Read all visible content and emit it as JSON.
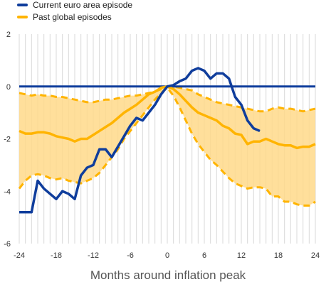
{
  "chart_data": {
    "type": "line",
    "title": "",
    "xlabel": "Months around inflation peak",
    "ylabel": "",
    "xlim": [
      -24,
      24
    ],
    "ylim": [
      -6,
      2
    ],
    "x_ticks": [
      -24,
      -18,
      -12,
      -6,
      0,
      6,
      12,
      18,
      24
    ],
    "y_ticks": [
      -6,
      -4,
      -2,
      0,
      2
    ],
    "x_tick_labels": [
      "-24",
      "-18",
      "-12",
      "-6",
      "0",
      "6",
      "12",
      "18",
      "24"
    ],
    "y_tick_labels": [
      "-6",
      "-4",
      "-2",
      "0",
      "2"
    ],
    "grid": "vertical lines at every month",
    "legend": {
      "placement": "top-left",
      "entries": [
        "Current euro area episode",
        "Past global episodes"
      ]
    },
    "colors": {
      "current": "#0f3d9c",
      "past_median": "#ffb400",
      "band_fill": "#ffd98a",
      "zero_line": "#0f3d9c",
      "grid": "#d9d9d9"
    },
    "series": [
      {
        "name": "Current euro area episode",
        "x": [
          -24,
          -23,
          -22,
          -21,
          -20,
          -19,
          -18,
          -17,
          -16,
          -15,
          -14,
          -13,
          -12,
          -11,
          -10,
          -9,
          -8,
          -7,
          -6,
          -5,
          -4,
          -3,
          -2,
          -1,
          0,
          1,
          2,
          3,
          4,
          5,
          6,
          7,
          8,
          9,
          10,
          11,
          12,
          13,
          14,
          15
        ],
        "values": [
          -4.8,
          -4.8,
          -4.8,
          -3.6,
          -3.9,
          -4.1,
          -4.3,
          -4.0,
          -4.1,
          -4.3,
          -3.4,
          -3.1,
          -3.0,
          -2.4,
          -2.4,
          -2.7,
          -2.3,
          -1.9,
          -1.5,
          -1.2,
          -1.3,
          -1.0,
          -0.7,
          -0.3,
          0.0,
          0.05,
          0.2,
          0.3,
          0.6,
          0.7,
          0.6,
          0.3,
          0.5,
          0.5,
          0.3,
          -0.4,
          -0.7,
          -1.3,
          -1.6,
          -1.7
        ]
      },
      {
        "name": "Past global episodes",
        "x": [
          -24,
          -23,
          -22,
          -21,
          -20,
          -19,
          -18,
          -17,
          -16,
          -15,
          -14,
          -13,
          -12,
          -11,
          -10,
          -9,
          -8,
          -7,
          -6,
          -5,
          -4,
          -3,
          -2,
          -1,
          0,
          1,
          2,
          3,
          4,
          5,
          6,
          7,
          8,
          9,
          10,
          11,
          12,
          13,
          14,
          15,
          16,
          17,
          18,
          19,
          20,
          21,
          22,
          23,
          24
        ],
        "values": [
          -1.7,
          -1.8,
          -1.8,
          -1.75,
          -1.75,
          -1.8,
          -1.9,
          -1.95,
          -2.0,
          -2.1,
          -2.0,
          -2.0,
          -1.85,
          -1.7,
          -1.55,
          -1.4,
          -1.2,
          -1.0,
          -0.85,
          -0.7,
          -0.5,
          -0.3,
          -0.2,
          -0.05,
          0.0,
          -0.1,
          -0.3,
          -0.55,
          -0.8,
          -1.0,
          -1.1,
          -1.2,
          -1.3,
          -1.5,
          -1.6,
          -1.8,
          -1.85,
          -2.2,
          -2.1,
          -2.1,
          -2.0,
          -2.1,
          -2.2,
          -2.25,
          -2.25,
          -2.35,
          -2.3,
          -2.3,
          -2.2
        ]
      },
      {
        "name": "",
        "x": [
          -24,
          -23,
          -22,
          -21,
          -20,
          -19,
          -18,
          -17,
          -16,
          -15,
          -14,
          -13,
          -12,
          -11,
          -10,
          -9,
          -8,
          -7,
          -6,
          -5,
          -4,
          -3,
          -2,
          -1,
          0,
          1,
          2,
          3,
          4,
          5,
          6,
          7,
          8,
          9,
          10,
          11,
          12,
          13,
          14,
          15,
          16,
          17,
          18,
          19,
          20,
          21,
          22,
          23,
          24
        ],
        "values": [
          -0.25,
          -0.3,
          -0.35,
          -0.3,
          -0.35,
          -0.35,
          -0.4,
          -0.4,
          -0.45,
          -0.5,
          -0.55,
          -0.6,
          -0.6,
          -0.55,
          -0.5,
          -0.5,
          -0.45,
          -0.4,
          -0.35,
          -0.35,
          -0.3,
          -0.25,
          -0.2,
          -0.1,
          0.0,
          0.0,
          -0.05,
          -0.1,
          -0.15,
          -0.3,
          -0.4,
          -0.5,
          -0.6,
          -0.65,
          -0.7,
          -0.75,
          -0.8,
          -0.85,
          -0.9,
          -0.95,
          -0.95,
          -0.85,
          -0.8,
          -0.85,
          -0.85,
          -0.9,
          -0.95,
          -0.9,
          -0.85
        ]
      },
      {
        "name": "",
        "x": [
          -24,
          -23,
          -22,
          -21,
          -20,
          -19,
          -18,
          -17,
          -16,
          -15,
          -14,
          -13,
          -12,
          -11,
          -10,
          -9,
          -8,
          -7,
          -6,
          -5,
          -4,
          -3,
          -2,
          -1,
          0,
          1,
          2,
          3,
          4,
          5,
          6,
          7,
          8,
          9,
          10,
          11,
          12,
          13,
          14,
          15,
          16,
          17,
          18,
          19,
          20,
          21,
          22,
          23,
          24
        ],
        "values": [
          -3.9,
          -3.6,
          -3.4,
          -3.35,
          -3.4,
          -3.5,
          -3.55,
          -3.5,
          -3.6,
          -3.65,
          -3.7,
          -3.6,
          -3.5,
          -3.3,
          -3.0,
          -2.7,
          -2.4,
          -2.0,
          -1.7,
          -1.4,
          -1.1,
          -0.8,
          -0.5,
          -0.25,
          -0.05,
          -0.35,
          -0.8,
          -1.3,
          -1.8,
          -2.2,
          -2.5,
          -2.8,
          -3.0,
          -3.25,
          -3.5,
          -3.7,
          -3.8,
          -3.9,
          -3.85,
          -3.85,
          -3.9,
          -4.2,
          -4.2,
          -4.4,
          -4.4,
          -4.5,
          -4.55,
          -4.55,
          -4.4
        ]
      }
    ]
  }
}
